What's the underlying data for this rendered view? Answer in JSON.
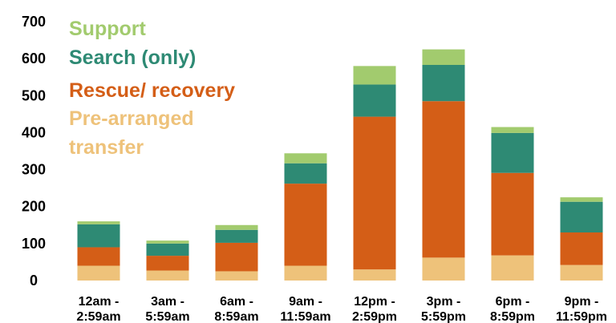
{
  "chart_data": {
    "type": "bar",
    "stacked": true,
    "categories": [
      [
        "12am -",
        "2:59am"
      ],
      [
        "3am -",
        "5:59am"
      ],
      [
        "6am -",
        "8:59am"
      ],
      [
        "9am -",
        "11:59am"
      ],
      [
        "12pm -",
        "2:59pm"
      ],
      [
        "3pm -",
        "5:59pm"
      ],
      [
        "6pm -",
        "8:59pm"
      ],
      [
        "9pm -",
        "11:59pm"
      ]
    ],
    "series": [
      {
        "name": "Pre-arranged transfer",
        "legend_lines": [
          "Pre-arranged",
          "transfer"
        ],
        "color": "#EEC27A",
        "values": [
          40,
          27,
          25,
          40,
          30,
          62,
          68,
          42
        ]
      },
      {
        "name": "Rescue/ recovery",
        "legend_lines": [
          "Rescue/ recovery"
        ],
        "color": "#D45E17",
        "values": [
          50,
          40,
          77,
          222,
          413,
          423,
          223,
          88
        ]
      },
      {
        "name": "Search (only)",
        "legend_lines": [
          "Search (only)"
        ],
        "color": "#2E8A74",
        "values": [
          62,
          33,
          35,
          55,
          87,
          98,
          108,
          83
        ]
      },
      {
        "name": "Support",
        "legend_lines": [
          "Support"
        ],
        "color": "#A2CB6E",
        "values": [
          8,
          8,
          13,
          27,
          50,
          42,
          16,
          12
        ]
      }
    ],
    "yticks": [
      0,
      100,
      200,
      300,
      400,
      500,
      600,
      700
    ],
    "ylim": [
      0,
      700
    ],
    "grid": false,
    "legend_position": "top-left",
    "title": "",
    "xlabel": "",
    "ylabel": ""
  }
}
